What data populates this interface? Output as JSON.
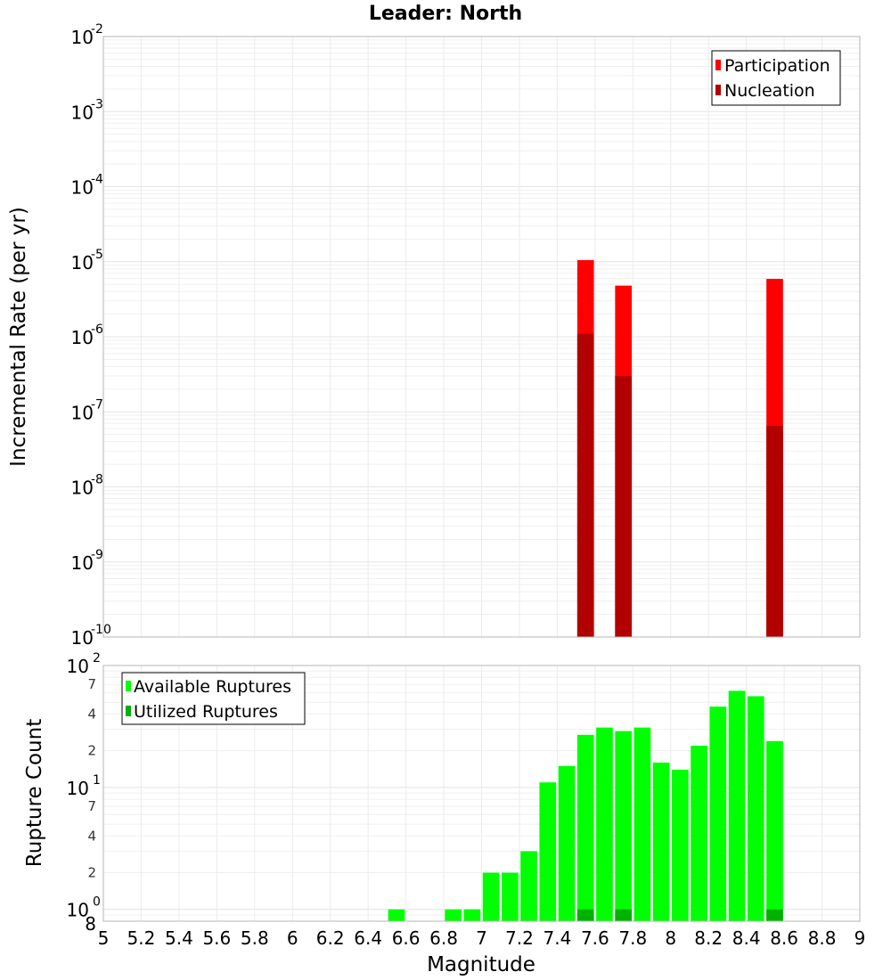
{
  "chart_data": [
    {
      "type": "bar",
      "title": "Leader: North",
      "xlabel": "",
      "ylabel": "Incremental Rate (per yr)",
      "yscale": "log",
      "ylim_exp": [
        -10,
        -2
      ],
      "xlim": [
        5,
        9
      ],
      "bin_width": 0.1,
      "legend": {
        "placement": "top-right",
        "entries": [
          {
            "name": "Participation",
            "color": "#ff0000"
          },
          {
            "name": "Nucleation",
            "color": "#b20000"
          }
        ]
      },
      "series": [
        {
          "name": "Participation",
          "color": "#ff0000",
          "x": [
            7.55,
            7.75,
            8.55
          ],
          "values": [
            1.05e-05,
            4.8e-06,
            5.9e-06
          ]
        },
        {
          "name": "Nucleation",
          "color": "#b20000",
          "x": [
            7.55,
            7.75,
            8.55
          ],
          "values": [
            1.1e-06,
            3e-07,
            6.5e-08
          ]
        }
      ]
    },
    {
      "type": "bar",
      "title": "",
      "xlabel": "Magnitude",
      "ylabel": "Rupture Count",
      "yscale": "log",
      "ylim": [
        0.8,
        100
      ],
      "xlim": [
        5,
        9
      ],
      "bin_width": 0.1,
      "x_ticks": [
        "5",
        "5.2",
        "5.4",
        "5.6",
        "5.8",
        "6",
        "6.2",
        "6.4",
        "6.6",
        "6.8",
        "7",
        "7.2",
        "7.4",
        "7.6",
        "7.8",
        "8",
        "8.2",
        "8.4",
        "8.6",
        "8.8",
        "9"
      ],
      "legend": {
        "placement": "top-left",
        "entries": [
          {
            "name": "Available Ruptures",
            "color": "#00ff00"
          },
          {
            "name": "Utilized Ruptures",
            "color": "#00b200"
          }
        ]
      },
      "series": [
        {
          "name": "Available Ruptures",
          "color": "#00ff00",
          "x": [
            6.55,
            6.85,
            6.95,
            7.05,
            7.15,
            7.25,
            7.35,
            7.45,
            7.55,
            7.65,
            7.75,
            7.85,
            7.95,
            8.05,
            8.15,
            8.25,
            8.35,
            8.45,
            8.55
          ],
          "values": [
            1,
            1,
            1,
            2,
            2,
            3,
            11,
            15,
            27,
            31,
            29,
            31,
            16,
            14,
            22,
            46,
            62,
            56,
            24
          ]
        },
        {
          "name": "Utilized Ruptures",
          "color": "#00b200",
          "x": [
            7.55,
            7.75,
            8.55
          ],
          "values": [
            1,
            1,
            1
          ]
        }
      ]
    }
  ],
  "top_panel": {
    "title": "Leader: North",
    "ylabel": "Incremental Rate (per yr)",
    "yticks": [
      {
        "base": "10",
        "exp": "-2"
      },
      {
        "base": "10",
        "exp": "-3"
      },
      {
        "base": "10",
        "exp": "-4"
      },
      {
        "base": "10",
        "exp": "-5"
      },
      {
        "base": "10",
        "exp": "-6"
      },
      {
        "base": "10",
        "exp": "-7"
      },
      {
        "base": "10",
        "exp": "-8"
      },
      {
        "base": "10",
        "exp": "-9"
      },
      {
        "base": "10",
        "exp": "-10"
      }
    ],
    "legend": [
      "Participation",
      "Nucleation"
    ]
  },
  "bottom_panel": {
    "ylabel": "Rupture Count",
    "xlabel": "Magnitude",
    "yticks": [
      {
        "base": "10",
        "exp": "2"
      },
      {
        "base": "10",
        "exp": "1"
      },
      {
        "base": "10",
        "exp": "0"
      }
    ],
    "minor_ticks": [
      "7",
      "4",
      "2",
      "7",
      "4",
      "2",
      "8"
    ],
    "legend": [
      "Available Ruptures",
      "Utilized Ruptures"
    ],
    "x_ticks": [
      "5",
      "5.2",
      "5.4",
      "5.6",
      "5.8",
      "6",
      "6.2",
      "6.4",
      "6.6",
      "6.8",
      "7",
      "7.2",
      "7.4",
      "7.6",
      "7.8",
      "8",
      "8.2",
      "8.4",
      "8.6",
      "8.8",
      "9"
    ]
  }
}
